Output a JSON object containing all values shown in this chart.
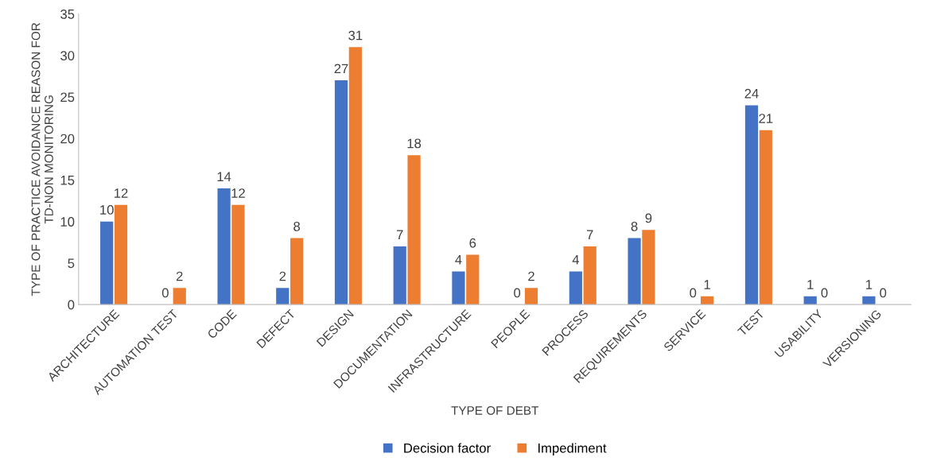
{
  "chart_data": {
    "type": "bar",
    "xlabel": "TYPE OF DEBT",
    "ylabel": "TYPE OF PRACTICE AVOIDANCE REASON FOR TD-NON MONITORING",
    "categories": [
      "ARCHITECTURE",
      "AUTOMATION TEST",
      "CODE",
      "DEFECT",
      "DESIGN",
      "DOCUMENTATION",
      "INFRASTRUCTURE",
      "PEOPLE",
      "PROCESS",
      "REQUIREMENTS",
      "SERVICE",
      "TEST",
      "USABILITY",
      "VERSIONING"
    ],
    "series": [
      {
        "name": "Decision factor",
        "color": "#4472c4",
        "values": [
          10,
          0,
          14,
          2,
          27,
          7,
          4,
          0,
          4,
          8,
          0,
          24,
          1,
          1
        ]
      },
      {
        "name": "Impediment",
        "color": "#ed7d31",
        "values": [
          12,
          2,
          12,
          8,
          31,
          18,
          6,
          2,
          7,
          9,
          1,
          21,
          0,
          0
        ]
      }
    ],
    "ylim": [
      0,
      35
    ],
    "yticks": [
      0,
      5,
      10,
      15,
      20,
      25,
      30,
      35
    ],
    "data_labels": true,
    "legend": "bottom",
    "grid": false
  }
}
